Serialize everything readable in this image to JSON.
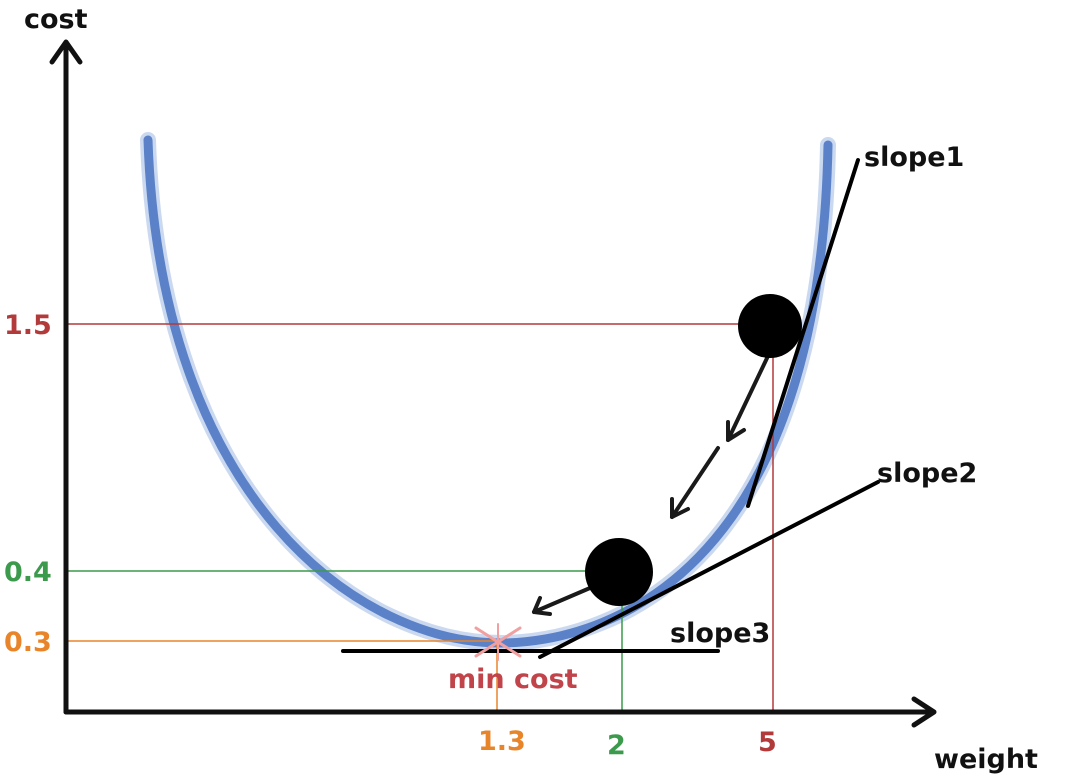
{
  "axes": {
    "y_label": "cost",
    "x_label": "weight"
  },
  "ticks": {
    "y": [
      {
        "value": "1.5",
        "color": "#b23a3a"
      },
      {
        "value": "0.4",
        "color": "#3c9a4c"
      },
      {
        "value": "0.3",
        "color": "#e8852a"
      }
    ],
    "x": [
      {
        "value": "1.3",
        "color": "#e8852a"
      },
      {
        "value": "2",
        "color": "#3c9a4c"
      },
      {
        "value": "5",
        "color": "#b23a3a"
      }
    ]
  },
  "slopes": {
    "slope1": "slope1",
    "slope2": "slope2",
    "slope3": "slope3"
  },
  "minimum": {
    "label": "min cost",
    "color": "#c0444a"
  },
  "colors": {
    "curve": "#5b82c8",
    "axis": "#111111",
    "ball": "#000000"
  }
}
